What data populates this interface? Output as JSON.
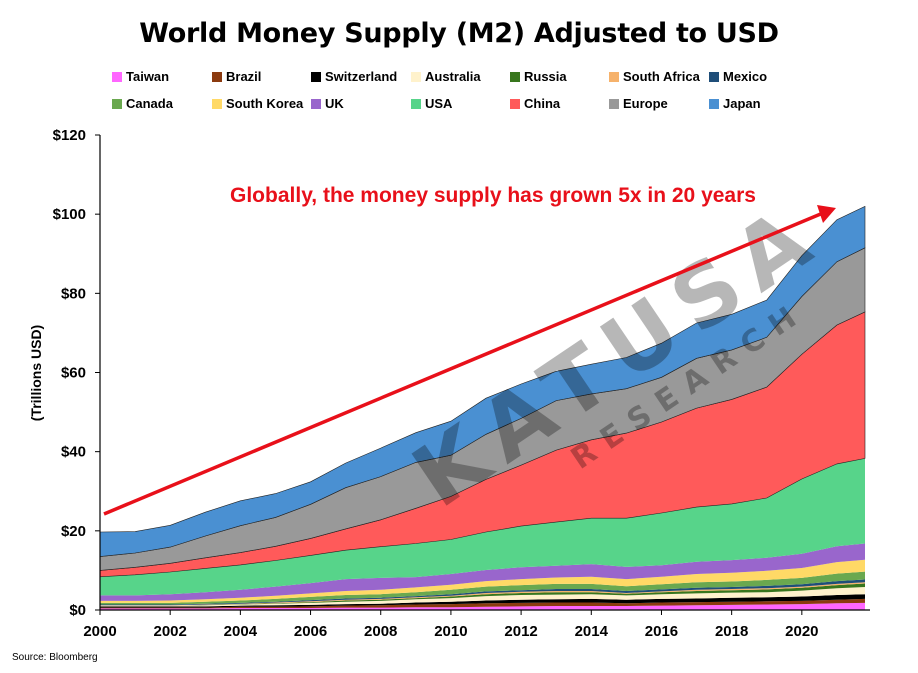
{
  "chart_data": {
    "type": "area",
    "title": "World Money Supply (M2) Adjusted to USD",
    "ylabel": "(Trillions USD)",
    "xlabel": "",
    "source": "Source: Bloomberg",
    "annotation": "Globally, the money supply has grown 5x in 20 years",
    "watermark": {
      "brand": "KATUSA",
      "sub": "RESEARCH"
    },
    "stacked": true,
    "ylim": [
      0,
      120
    ],
    "xlim": [
      2000,
      2021.8
    ],
    "y_ticks": [
      0,
      20,
      40,
      60,
      80,
      100,
      120
    ],
    "y_tick_labels": [
      "$0",
      "$20",
      "$40",
      "$60",
      "$80",
      "$100",
      "$120"
    ],
    "x_ticks": [
      2000,
      2002,
      2004,
      2006,
      2008,
      2010,
      2012,
      2014,
      2016,
      2018,
      2020
    ],
    "x_tick_labels": [
      "2000",
      "2002",
      "2004",
      "2006",
      "2008",
      "2010",
      "2012",
      "2014",
      "2016",
      "2018",
      "2020"
    ],
    "grid": false,
    "legend_position": "top",
    "x": [
      2000,
      2001,
      2002,
      2003,
      2004,
      2005,
      2006,
      2007,
      2008,
      2009,
      2010,
      2011,
      2012,
      2013,
      2014,
      2015,
      2016,
      2017,
      2018,
      2019,
      2020,
      2021,
      2021.8
    ],
    "series": [
      {
        "name": "Taiwan",
        "color": "#ff66ff",
        "values": [
          0.4,
          0.4,
          0.4,
          0.4,
          0.5,
          0.5,
          0.5,
          0.6,
          0.6,
          0.7,
          0.7,
          0.8,
          0.9,
          1.0,
          1.0,
          1.0,
          1.1,
          1.2,
          1.3,
          1.4,
          1.5,
          1.7,
          1.8
        ]
      },
      {
        "name": "Brazil",
        "color": "#8b3a0f",
        "values": [
          0.2,
          0.2,
          0.2,
          0.2,
          0.3,
          0.3,
          0.4,
          0.5,
          0.6,
          0.7,
          0.8,
          0.9,
          0.9,
          0.9,
          0.9,
          0.7,
          0.8,
          0.8,
          0.8,
          0.8,
          0.8,
          0.9,
          1.0
        ]
      },
      {
        "name": "Switzerland",
        "color": "#000000",
        "values": [
          0.3,
          0.3,
          0.3,
          0.3,
          0.3,
          0.4,
          0.4,
          0.4,
          0.4,
          0.5,
          0.6,
          0.7,
          0.8,
          0.8,
          0.9,
          0.9,
          0.9,
          0.9,
          1.0,
          1.0,
          1.1,
          1.2,
          1.2
        ]
      },
      {
        "name": "Australia",
        "color": "#fff2cc",
        "values": [
          0.2,
          0.2,
          0.2,
          0.3,
          0.3,
          0.4,
          0.5,
          0.6,
          0.7,
          0.8,
          0.9,
          1.1,
          1.2,
          1.2,
          1.2,
          1.1,
          1.2,
          1.3,
          1.3,
          1.3,
          1.5,
          1.7,
          1.8
        ]
      },
      {
        "name": "Russia",
        "color": "#38761d",
        "values": [
          0.0,
          0.0,
          0.0,
          0.1,
          0.1,
          0.1,
          0.2,
          0.3,
          0.3,
          0.3,
          0.4,
          0.5,
          0.5,
          0.6,
          0.5,
          0.4,
          0.5,
          0.6,
          0.6,
          0.7,
          0.7,
          0.8,
          0.9
        ]
      },
      {
        "name": "South Africa",
        "color": "#f6b26b",
        "values": [
          0.1,
          0.1,
          0.1,
          0.1,
          0.1,
          0.2,
          0.2,
          0.2,
          0.2,
          0.2,
          0.2,
          0.3,
          0.3,
          0.3,
          0.3,
          0.2,
          0.2,
          0.3,
          0.3,
          0.3,
          0.3,
          0.3,
          0.3
        ]
      },
      {
        "name": "Mexico",
        "color": "#1f4e79",
        "values": [
          0.2,
          0.2,
          0.2,
          0.2,
          0.2,
          0.2,
          0.3,
          0.3,
          0.3,
          0.3,
          0.4,
          0.4,
          0.4,
          0.5,
          0.5,
          0.5,
          0.5,
          0.5,
          0.5,
          0.6,
          0.6,
          0.7,
          0.7
        ]
      },
      {
        "name": "Canada",
        "color": "#6aa84f",
        "values": [
          0.4,
          0.4,
          0.4,
          0.5,
          0.6,
          0.7,
          0.8,
          0.9,
          0.9,
          1.0,
          1.1,
          1.2,
          1.3,
          1.3,
          1.3,
          1.2,
          1.3,
          1.4,
          1.4,
          1.5,
          1.6,
          1.9,
          2.0
        ]
      },
      {
        "name": "South Korea",
        "color": "#ffd966",
        "values": [
          0.5,
          0.5,
          0.6,
          0.6,
          0.7,
          0.8,
          0.9,
          1.0,
          1.1,
          1.2,
          1.3,
          1.4,
          1.5,
          1.6,
          1.8,
          1.8,
          1.9,
          2.1,
          2.2,
          2.3,
          2.5,
          2.9,
          3.0
        ]
      },
      {
        "name": "UK",
        "color": "#9966cc",
        "values": [
          1.4,
          1.4,
          1.6,
          1.8,
          2.0,
          2.3,
          2.6,
          3.0,
          3.0,
          2.6,
          2.7,
          2.8,
          3.0,
          3.0,
          3.2,
          3.1,
          2.9,
          3.1,
          3.2,
          3.3,
          3.6,
          4.0,
          4.1
        ]
      },
      {
        "name": "USA",
        "color": "#57d48a",
        "values": [
          4.7,
          5.2,
          5.6,
          6.0,
          6.3,
          6.6,
          7.0,
          7.3,
          7.9,
          8.5,
          8.7,
          9.6,
          10.4,
          11.0,
          11.6,
          12.3,
          13.2,
          13.8,
          14.2,
          15.1,
          18.9,
          20.8,
          21.5
        ]
      },
      {
        "name": "China",
        "color": "#ff5a5a",
        "values": [
          1.6,
          1.9,
          2.2,
          2.7,
          3.1,
          3.6,
          4.3,
          5.4,
          6.8,
          8.9,
          10.9,
          13.3,
          15.4,
          18.2,
          19.8,
          21.5,
          23.0,
          25.0,
          26.4,
          28.0,
          31.5,
          35.1,
          37.0
        ]
      },
      {
        "name": "Europe",
        "color": "#999999",
        "values": [
          3.5,
          3.6,
          4.1,
          5.5,
          6.8,
          7.3,
          8.6,
          10.4,
          10.9,
          11.6,
          10.4,
          11.4,
          11.8,
          12.5,
          11.6,
          11.2,
          11.3,
          12.6,
          12.5,
          12.6,
          14.6,
          16.0,
          16.2
        ]
      },
      {
        "name": "Japan",
        "color": "#4a90d2",
        "values": [
          6.2,
          5.4,
          5.5,
          6.0,
          6.3,
          6.0,
          5.7,
          6.2,
          7.2,
          7.5,
          8.6,
          9.1,
          8.7,
          7.4,
          7.5,
          7.9,
          8.6,
          8.9,
          9.0,
          9.4,
          10.3,
          10.6,
          10.5
        ]
      }
    ]
  }
}
